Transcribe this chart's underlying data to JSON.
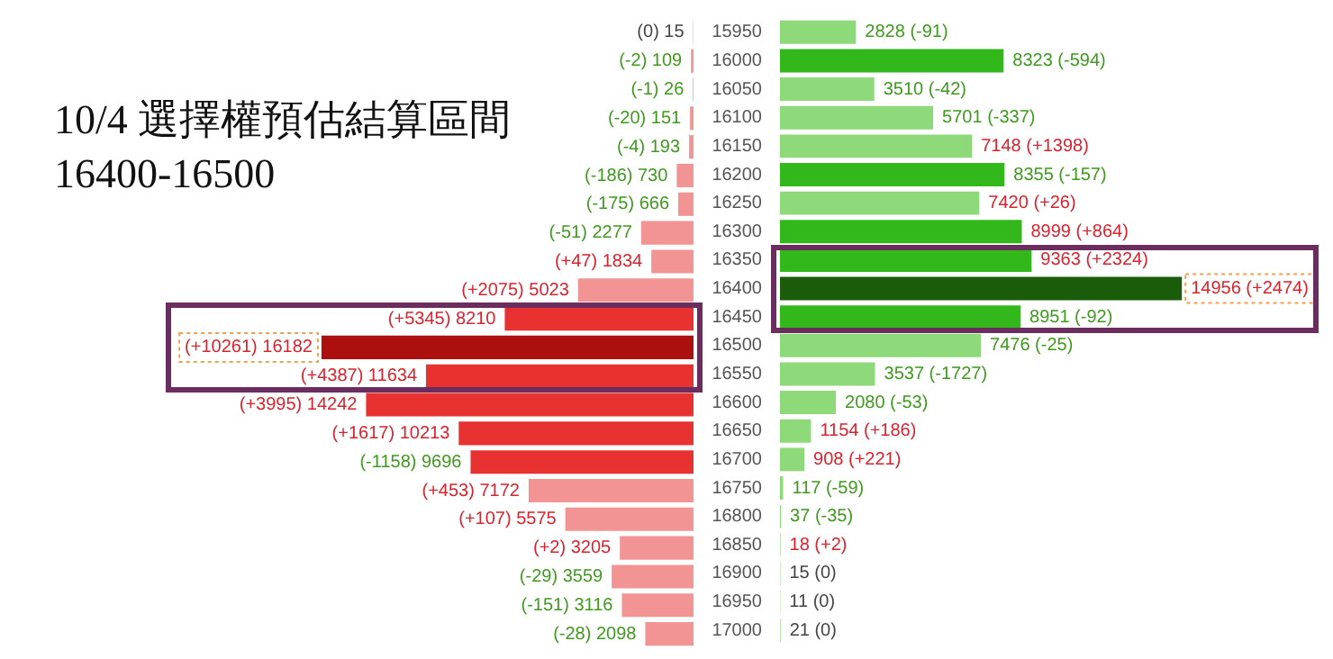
{
  "chart_data": [
    {
      "type": "bar",
      "orientation": "horizontal",
      "title": "10/4 選擇權預估結算區間",
      "subtitle": "16400-16500",
      "categories": [
        "15950",
        "16000",
        "16050",
        "16100",
        "16150",
        "16200",
        "16250",
        "16300",
        "16350",
        "16400",
        "16450",
        "16500",
        "16550",
        "16600",
        "16650",
        "16700",
        "16750",
        "16800",
        "16850",
        "16900",
        "16950",
        "17000"
      ],
      "values": [
        15,
        109,
        26,
        151,
        193,
        730,
        666,
        2277,
        1834,
        5023,
        8210,
        16182,
        11634,
        14242,
        10213,
        9696,
        7172,
        5575,
        3205,
        3559,
        3116,
        2098
      ],
      "colors": [
        "#f29494",
        "#f29494",
        "#f29494",
        "#f29494",
        "#f29494",
        "#f29494",
        "#f29494",
        "#f29494",
        "#f29494",
        "#f29494",
        "#e83232",
        "#ad0e0e",
        "#e83232",
        "#e83232",
        "#e83232",
        "#e83232",
        "#f29494",
        "#f29494",
        "#f29494",
        "#f29494",
        "#f29494",
        "#f29494"
      ],
      "value_labels": [
        "(0) 15",
        "(-2) 109",
        "(-1) 26",
        "(-20) 151",
        "(-4) 193",
        "(-186) 730",
        "(-175) 666",
        "(-51) 2277",
        "(+47) 1834",
        "(+2075) 5023",
        "(+5345) 8210",
        "(+10261) 16182",
        "(+4387) 11634",
        "(+3995) 14242",
        "(+1617) 10213",
        "(-1158) 9696",
        "(+453) 7172",
        "(+107) 5575",
        "(+2) 3205",
        "(-29) 3559",
        "(-151) 3116",
        "(-28) 2098"
      ],
      "tick_labels": false
    },
    {
      "type": "bar",
      "orientation": "horizontal",
      "categories": [
        "15950",
        "16000",
        "16050",
        "16100",
        "16150",
        "16200",
        "16250",
        "16300",
        "16350",
        "16400",
        "16450",
        "16500",
        "16550",
        "16600",
        "16650",
        "16700",
        "16750",
        "16800",
        "16850",
        "16900",
        "16950",
        "17000"
      ],
      "values": [
        2828,
        8323,
        3510,
        5701,
        7148,
        8355,
        7420,
        8999,
        9363,
        14956,
        8951,
        7476,
        3537,
        2080,
        1154,
        908,
        117,
        37,
        18,
        15,
        11,
        21
      ],
      "colors": [
        "#8ed97a",
        "#33b81b",
        "#8ed97a",
        "#8ed97a",
        "#8ed97a",
        "#33b81b",
        "#8ed97a",
        "#33b81b",
        "#33b81b",
        "#1a5c0a",
        "#33b81b",
        "#8ed97a",
        "#8ed97a",
        "#8ed97a",
        "#8ed97a",
        "#8ed97a",
        "#8ed97a",
        "#8ed97a",
        "#8ed97a",
        "#8ed97a",
        "#8ed97a",
        "#8ed97a"
      ],
      "value_labels": [
        "2828 (-91)",
        "8323 (-594)",
        "3510 (-42)",
        "5701 (-337)",
        "7148 (+1398)",
        "8355 (-157)",
        "7420 (+26)",
        "8999 (+864)",
        "9363 (+2324)",
        "14956 (+2474)",
        "8951 (-92)",
        "7476 (-25)",
        "3537 (-1727)",
        "2080 (-53)",
        "1154 (+186)",
        "908 (+221)",
        "117 (-59)",
        "37 (-35)",
        "18 (+2)",
        "15 (0)",
        "11 (0)",
        "21 (0)"
      ],
      "tick_labels": "y"
    }
  ]
}
